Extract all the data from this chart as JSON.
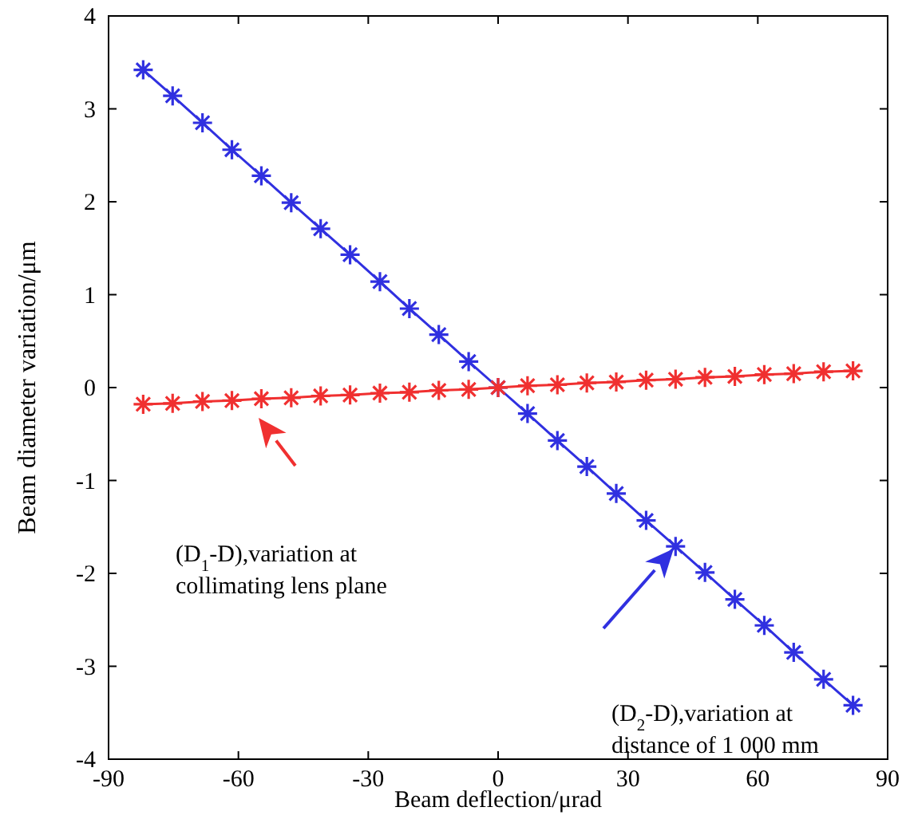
{
  "chart_data": {
    "type": "line",
    "xlabel": "Beam deflection/μrad",
    "ylabel": "Beam diameter variation/μm",
    "x": [
      -82,
      -75.2,
      -68.3,
      -61.5,
      -54.7,
      -47.8,
      -41,
      -34.2,
      -27.3,
      -20.5,
      -13.7,
      -6.8,
      0,
      6.8,
      13.7,
      20.5,
      27.3,
      34.2,
      41,
      47.8,
      54.7,
      61.5,
      68.3,
      75.2,
      82
    ],
    "series": [
      {
        "color": "#3030e0",
        "values": [
          3.42,
          3.14,
          2.85,
          2.56,
          2.28,
          1.99,
          1.71,
          1.43,
          1.14,
          0.85,
          0.57,
          0.28,
          0,
          -0.28,
          -0.57,
          -0.85,
          -1.14,
          -1.43,
          -1.71,
          -1.99,
          -2.28,
          -2.56,
          -2.85,
          -3.14,
          -3.42
        ]
      },
      {
        "color": "#f03030",
        "values": [
          -0.18,
          -0.17,
          -0.15,
          -0.14,
          -0.12,
          -0.11,
          -0.09,
          -0.08,
          -0.06,
          -0.05,
          -0.03,
          -0.02,
          0,
          0.02,
          0.03,
          0.05,
          0.06,
          0.08,
          0.09,
          0.11,
          0.12,
          0.14,
          0.15,
          0.17,
          0.18
        ]
      }
    ],
    "xlim": [
      -90,
      90
    ],
    "xticks": [
      -90,
      -60,
      -30,
      0,
      30,
      60,
      90
    ],
    "ylim": [
      -4,
      4
    ],
    "yticks": [
      -4,
      -3,
      -2,
      -1,
      0,
      1,
      2,
      3,
      4
    ],
    "marker": "cross",
    "line_style": "solid",
    "grid": false,
    "annotations": [
      "(D$_{1}$-D),variation at collimating lens plane",
      "(D$_{2}$-D),variation at distance of 1 000 mm"
    ]
  }
}
